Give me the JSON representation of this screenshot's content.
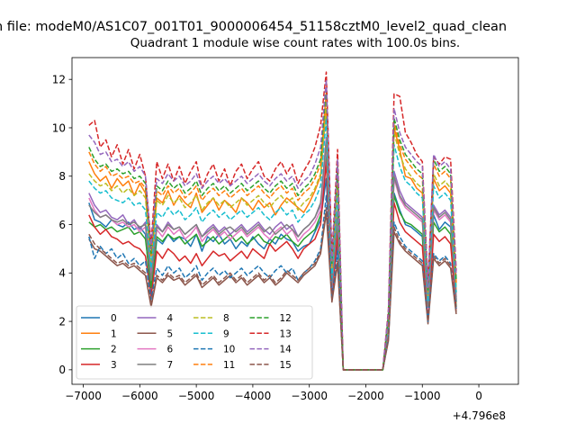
{
  "figure": {
    "suptitle": "n file: modeM0/AS1C07_001T01_9000006454_51158cztM0_level2_quad_clean",
    "title": "Quadrant 1 module wise count rates with 100.0s bins.",
    "offset_label": "+4.796e8"
  },
  "chart_data": {
    "type": "line",
    "title": "Quadrant 1 module wise count rates with 100.0s bins.",
    "xlabel": "",
    "ylabel": "",
    "x_offset": 479600000,
    "xlim": [
      -7200,
      700
    ],
    "ylim": [
      -0.6,
      12.9
    ],
    "xticks": [
      -7000,
      -6000,
      -5000,
      -4000,
      -3000,
      -2000,
      -1000,
      0
    ],
    "xtick_labels": [
      "−7000",
      "−6000",
      "−5000",
      "−4000",
      "−3000",
      "−2000",
      "−1000",
      "0"
    ],
    "yticks": [
      0,
      2,
      4,
      6,
      8,
      10,
      12
    ],
    "ytick_labels": [
      "0",
      "2",
      "4",
      "6",
      "8",
      "10",
      "12"
    ],
    "grid": false,
    "legend": {
      "position": "lower-left",
      "columns": 4
    },
    "x_start": -6900,
    "x_step": 100,
    "series": [
      {
        "name": "0",
        "color": "#1f77b4",
        "dash": "solid",
        "values": [
          6.9,
          6.2,
          6.1,
          5.9,
          6.2,
          6.0,
          5.9,
          6.1,
          5.8,
          5.9,
          5.6,
          3.0,
          5.4,
          5.2,
          5.6,
          5.3,
          5.5,
          5.4,
          5.1,
          5.6,
          4.9,
          5.5,
          5.3,
          5.6,
          5.2,
          5.4,
          5.0,
          5.3,
          5.1,
          5.5,
          5.2,
          5.0,
          5.4,
          5.2,
          5.6,
          5.4,
          5.3,
          4.9,
          5.1,
          5.2,
          5.7,
          6.2,
          7.9,
          3.3,
          5.2,
          0,
          0,
          0,
          0,
          0,
          0,
          0,
          0,
          1.5,
          7.3,
          6.6,
          6.0,
          5.9,
          5.7,
          5.5,
          2.1,
          6.4,
          5.8,
          6.1,
          5.9,
          2.8
        ]
      },
      {
        "name": "1",
        "color": "#ff7f0e",
        "dash": "solid",
        "values": [
          8.6,
          8.1,
          7.8,
          8.0,
          7.5,
          7.9,
          7.6,
          7.8,
          7.2,
          7.7,
          7.3,
          4.1,
          7.1,
          6.9,
          7.4,
          6.8,
          7.2,
          6.9,
          6.7,
          7.3,
          6.5,
          6.8,
          7.1,
          6.6,
          7.0,
          6.8,
          6.5,
          7.1,
          6.9,
          6.6,
          7.0,
          6.7,
          6.9,
          6.4,
          6.8,
          7.1,
          6.9,
          6.7,
          6.5,
          6.9,
          7.4,
          8.0,
          10.8,
          3.9,
          7.6,
          0,
          0,
          0,
          0,
          0,
          0,
          0,
          0,
          2.0,
          10.0,
          9.1,
          8.0,
          7.9,
          7.5,
          7.3,
          2.9,
          7.9,
          7.4,
          7.6,
          7.3,
          3.2
        ]
      },
      {
        "name": "2",
        "color": "#2ca02c",
        "dash": "solid",
        "values": [
          6.1,
          5.9,
          6.0,
          5.8,
          5.9,
          5.7,
          5.8,
          5.9,
          5.6,
          5.7,
          5.4,
          3.4,
          5.5,
          5.3,
          5.6,
          5.4,
          5.5,
          5.2,
          5.4,
          5.6,
          5.1,
          5.3,
          5.5,
          5.2,
          5.4,
          5.6,
          5.3,
          5.5,
          5.2,
          5.4,
          5.6,
          5.3,
          5.2,
          5.5,
          5.4,
          5.6,
          5.3,
          5.1,
          5.4,
          5.6,
          5.8,
          6.4,
          9.1,
          3.0,
          6.0,
          0,
          0,
          0,
          0,
          0,
          0,
          0,
          0,
          1.6,
          7.2,
          6.5,
          6.1,
          6.0,
          5.8,
          5.6,
          2.3,
          6.1,
          5.7,
          5.9,
          5.6,
          2.6
        ]
      },
      {
        "name": "3",
        "color": "#d62728",
        "dash": "solid",
        "values": [
          6.4,
          5.9,
          5.6,
          5.8,
          5.5,
          5.4,
          5.2,
          5.3,
          5.1,
          5.0,
          4.7,
          3.0,
          4.9,
          4.6,
          5.0,
          4.8,
          4.5,
          4.7,
          4.4,
          4.8,
          4.3,
          4.6,
          4.9,
          4.7,
          4.8,
          4.5,
          4.7,
          4.9,
          4.6,
          5.0,
          4.8,
          4.6,
          5.2,
          4.9,
          5.1,
          5.3,
          5.0,
          4.6,
          5.0,
          5.2,
          5.4,
          6.0,
          8.6,
          2.9,
          5.6,
          0,
          0,
          0,
          0,
          0,
          0,
          0,
          0,
          1.5,
          6.9,
          6.1,
          5.7,
          5.5,
          5.3,
          5.1,
          2.0,
          5.6,
          5.3,
          5.5,
          5.2,
          2.5
        ]
      },
      {
        "name": "4",
        "color": "#9467bd",
        "dash": "solid",
        "values": [
          7.3,
          6.8,
          6.5,
          6.6,
          6.3,
          6.2,
          6.4,
          6.0,
          6.2,
          5.8,
          6.1,
          4.0,
          6.0,
          5.7,
          6.1,
          5.8,
          5.9,
          5.6,
          5.8,
          6.0,
          5.5,
          5.8,
          6.0,
          5.7,
          5.9,
          5.6,
          5.8,
          6.0,
          5.7,
          5.9,
          6.1,
          5.8,
          5.6,
          5.9,
          6.1,
          5.8,
          6.0,
          5.5,
          5.8,
          6.0,
          6.3,
          6.8,
          9.6,
          3.5,
          6.6,
          0,
          0,
          0,
          0,
          0,
          0,
          0,
          0,
          1.8,
          8.2,
          7.4,
          6.9,
          6.7,
          6.5,
          6.3,
          2.6,
          6.8,
          6.4,
          6.6,
          6.3,
          3.0
        ]
      },
      {
        "name": "5",
        "color": "#8c564b",
        "dash": "solid",
        "values": [
          5.4,
          5.0,
          4.9,
          4.7,
          4.5,
          4.3,
          4.4,
          4.2,
          4.3,
          4.1,
          3.9,
          2.6,
          3.8,
          3.6,
          3.9,
          3.7,
          3.8,
          3.5,
          3.7,
          3.9,
          3.4,
          3.6,
          3.8,
          3.5,
          3.7,
          3.9,
          3.6,
          3.8,
          3.5,
          3.7,
          3.9,
          3.6,
          3.8,
          3.5,
          3.7,
          4.0,
          3.8,
          3.6,
          3.9,
          4.1,
          4.3,
          4.8,
          6.5,
          2.8,
          4.4,
          0,
          0,
          0,
          0,
          0,
          0,
          0,
          0,
          1.2,
          5.7,
          5.2,
          4.9,
          4.7,
          4.5,
          4.3,
          1.9,
          4.6,
          4.3,
          4.5,
          4.2,
          2.3
        ]
      },
      {
        "name": "6",
        "color": "#e377c2",
        "dash": "solid",
        "values": [
          7.1,
          6.6,
          6.3,
          6.4,
          6.2,
          6.0,
          6.1,
          5.9,
          6.0,
          5.7,
          5.9,
          3.8,
          5.8,
          5.5,
          5.9,
          5.6,
          5.8,
          5.4,
          5.6,
          5.9,
          5.3,
          5.6,
          5.8,
          5.5,
          5.7,
          5.4,
          5.6,
          5.8,
          5.5,
          5.7,
          5.9,
          5.6,
          5.4,
          5.7,
          5.9,
          5.6,
          5.8,
          5.3,
          5.6,
          5.8,
          6.1,
          6.6,
          9.3,
          3.4,
          6.4,
          0,
          0,
          0,
          0,
          0,
          0,
          0,
          0,
          1.7,
          7.9,
          7.1,
          6.7,
          6.5,
          6.3,
          6.1,
          2.5,
          6.6,
          6.2,
          6.4,
          6.1,
          2.9
        ]
      },
      {
        "name": "7",
        "color": "#7f7f7f",
        "dash": "solid",
        "values": [
          6.8,
          6.5,
          6.3,
          6.4,
          6.2,
          6.1,
          6.2,
          6.0,
          6.1,
          5.9,
          6.0,
          3.7,
          5.9,
          5.7,
          6.0,
          5.8,
          5.9,
          5.6,
          5.8,
          6.0,
          5.5,
          5.7,
          5.9,
          5.6,
          5.8,
          5.9,
          5.7,
          5.9,
          5.6,
          5.8,
          6.0,
          5.7,
          5.9,
          5.6,
          5.8,
          6.0,
          5.8,
          5.5,
          5.8,
          6.0,
          6.3,
          6.9,
          9.4,
          3.5,
          6.5,
          0,
          0,
          0,
          0,
          0,
          0,
          0,
          0,
          1.8,
          8.0,
          7.2,
          6.8,
          6.6,
          6.4,
          6.2,
          2.6,
          6.7,
          6.3,
          6.5,
          6.2,
          2.9
        ]
      },
      {
        "name": "8",
        "color": "#bcbd22",
        "dash": "dashed",
        "values": [
          8.1,
          7.8,
          7.6,
          7.7,
          7.4,
          7.6,
          7.3,
          7.5,
          7.2,
          7.4,
          7.1,
          4.5,
          7.0,
          6.8,
          7.2,
          6.9,
          7.1,
          6.7,
          6.9,
          7.2,
          6.6,
          6.9,
          7.1,
          6.8,
          7.0,
          6.7,
          6.9,
          7.1,
          6.8,
          7.0,
          7.2,
          6.9,
          6.7,
          7.0,
          7.2,
          6.9,
          7.1,
          6.6,
          6.9,
          7.1,
          7.5,
          8.1,
          11.0,
          4.1,
          7.8,
          0,
          0,
          0,
          0,
          0,
          0,
          0,
          0,
          2.1,
          9.8,
          8.9,
          8.3,
          8.0,
          7.7,
          7.5,
          3.0,
          8.1,
          7.6,
          7.8,
          7.5,
          3.4
        ]
      },
      {
        "name": "9",
        "color": "#17becf",
        "dash": "dashed",
        "values": [
          7.8,
          7.5,
          7.3,
          7.4,
          7.1,
          7.0,
          6.9,
          7.1,
          6.8,
          6.9,
          6.6,
          4.2,
          6.5,
          6.3,
          6.7,
          6.4,
          6.6,
          6.2,
          6.4,
          6.7,
          6.1,
          6.4,
          6.6,
          6.3,
          6.5,
          6.2,
          6.4,
          6.6,
          6.3,
          6.5,
          6.7,
          6.4,
          6.2,
          6.5,
          6.7,
          6.4,
          6.6,
          6.1,
          6.4,
          6.6,
          7.0,
          7.6,
          10.4,
          3.8,
          7.3,
          0,
          0,
          0,
          0,
          0,
          0,
          0,
          0,
          2.0,
          9.3,
          8.4,
          7.8,
          7.6,
          7.3,
          7.1,
          2.8,
          7.6,
          7.1,
          7.3,
          7.0,
          3.2
        ]
      },
      {
        "name": "10",
        "color": "#1f77b4",
        "dash": "dashed",
        "values": [
          5.5,
          4.6,
          5.1,
          4.8,
          5.0,
          4.6,
          4.8,
          4.4,
          4.6,
          4.3,
          4.5,
          2.9,
          4.2,
          3.9,
          4.3,
          4.0,
          4.2,
          3.8,
          4.0,
          4.3,
          3.7,
          4.0,
          4.2,
          3.9,
          4.1,
          3.8,
          4.0,
          4.2,
          3.9,
          4.1,
          4.3,
          4.0,
          3.8,
          4.1,
          4.3,
          4.0,
          4.2,
          3.7,
          4.0,
          4.2,
          4.5,
          5.0,
          7.2,
          3.0,
          4.9,
          0,
          0,
          0,
          0,
          0,
          0,
          0,
          0,
          1.3,
          6.1,
          5.5,
          5.1,
          4.9,
          4.7,
          4.5,
          2.0,
          4.8,
          4.5,
          4.7,
          4.4,
          2.5
        ]
      },
      {
        "name": "11",
        "color": "#ff7f0e",
        "dash": "dashed",
        "values": [
          9.0,
          8.5,
          8.2,
          8.4,
          8.0,
          8.1,
          7.9,
          8.0,
          7.7,
          7.8,
          7.5,
          4.7,
          7.4,
          7.2,
          7.6,
          7.3,
          7.5,
          7.1,
          7.3,
          7.6,
          7.0,
          7.3,
          7.5,
          7.2,
          7.4,
          7.1,
          7.3,
          7.5,
          7.2,
          7.4,
          7.6,
          7.3,
          7.1,
          7.4,
          7.6,
          7.3,
          7.5,
          7.0,
          7.3,
          7.5,
          7.9,
          8.5,
          11.5,
          4.3,
          8.2,
          0,
          0,
          0,
          0,
          0,
          0,
          0,
          0,
          2.2,
          10.2,
          9.3,
          8.7,
          8.4,
          8.1,
          7.9,
          3.2,
          8.5,
          8.0,
          8.2,
          7.9,
          3.6
        ]
      },
      {
        "name": "12",
        "color": "#2ca02c",
        "dash": "dashed",
        "values": [
          9.2,
          8.7,
          8.4,
          8.5,
          8.2,
          8.3,
          8.1,
          8.2,
          7.9,
          8.0,
          7.7,
          4.8,
          7.6,
          7.4,
          7.8,
          7.5,
          7.7,
          7.3,
          7.5,
          7.8,
          7.2,
          7.5,
          7.7,
          7.4,
          7.6,
          7.3,
          7.5,
          7.7,
          7.4,
          7.6,
          7.8,
          7.5,
          7.3,
          7.6,
          7.8,
          7.5,
          7.7,
          7.2,
          7.5,
          7.7,
          8.1,
          8.7,
          11.7,
          4.4,
          8.4,
          0,
          0,
          0,
          0,
          0,
          0,
          0,
          0,
          2.3,
          10.4,
          9.5,
          8.9,
          8.6,
          8.3,
          8.1,
          3.3,
          8.7,
          8.2,
          8.4,
          8.1,
          3.7
        ]
      },
      {
        "name": "13",
        "color": "#d62728",
        "dash": "dashed",
        "values": [
          10.1,
          10.3,
          9.2,
          9.5,
          8.8,
          9.3,
          8.5,
          9.1,
          8.3,
          8.9,
          8.0,
          5.2,
          8.6,
          7.9,
          8.5,
          7.8,
          8.4,
          7.7,
          8.2,
          8.6,
          7.5,
          8.1,
          8.5,
          7.8,
          8.3,
          7.6,
          8.2,
          8.5,
          7.9,
          8.3,
          8.6,
          8.0,
          7.8,
          8.3,
          8.6,
          8.1,
          8.5,
          7.7,
          8.2,
          8.6,
          9.2,
          10.1,
          12.3,
          4.7,
          9.1,
          0,
          0,
          0,
          0,
          0,
          0,
          0,
          0,
          2.5,
          11.4,
          11.3,
          9.8,
          9.4,
          8.9,
          8.6,
          3.6,
          8.8,
          8.5,
          8.8,
          8.7,
          4.1
        ]
      },
      {
        "name": "14",
        "color": "#9467bd",
        "dash": "dashed",
        "values": [
          9.7,
          9.4,
          8.9,
          9.0,
          8.6,
          8.7,
          8.4,
          8.6,
          8.2,
          8.4,
          8.0,
          5.0,
          7.9,
          7.7,
          8.1,
          7.8,
          8.0,
          7.6,
          7.8,
          8.1,
          7.5,
          7.8,
          8.0,
          7.7,
          7.9,
          7.6,
          7.8,
          8.0,
          7.7,
          7.9,
          8.1,
          7.8,
          7.6,
          7.9,
          8.1,
          7.8,
          8.0,
          7.5,
          7.8,
          8.0,
          8.5,
          9.2,
          12.0,
          4.5,
          8.7,
          0,
          0,
          0,
          0,
          0,
          0,
          0,
          0,
          2.4,
          10.8,
          9.8,
          9.2,
          8.9,
          8.6,
          8.4,
          3.4,
          8.9,
          8.4,
          8.6,
          8.3,
          3.9
        ]
      },
      {
        "name": "15",
        "color": "#8c564b",
        "dash": "dashed",
        "values": [
          5.6,
          5.2,
          5.0,
          4.8,
          4.6,
          4.4,
          4.5,
          4.3,
          4.4,
          4.2,
          4.0,
          2.7,
          3.9,
          3.7,
          4.0,
          3.8,
          3.9,
          3.6,
          3.8,
          4.0,
          3.5,
          3.7,
          3.9,
          3.6,
          3.8,
          4.0,
          3.7,
          3.9,
          3.6,
          3.8,
          4.0,
          3.7,
          3.9,
          3.6,
          3.8,
          4.1,
          3.9,
          3.7,
          4.0,
          4.2,
          4.4,
          4.9,
          6.7,
          2.9,
          4.5,
          0,
          0,
          0,
          0,
          0,
          0,
          0,
          0,
          1.3,
          5.9,
          5.3,
          5.0,
          4.8,
          4.6,
          4.4,
          2.0,
          4.7,
          4.4,
          4.6,
          4.3,
          2.4
        ]
      }
    ]
  }
}
